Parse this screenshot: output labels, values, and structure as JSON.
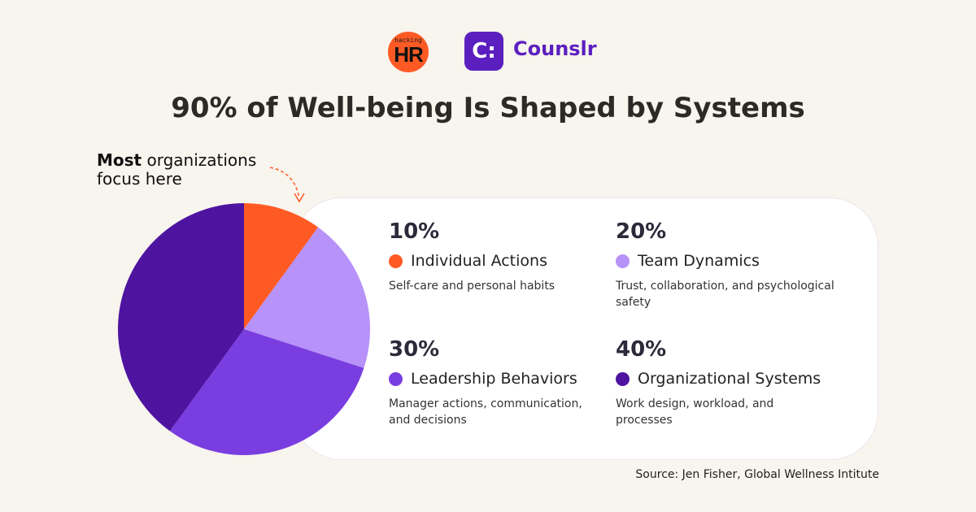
{
  "logos": {
    "hacking_hr": {
      "small": "hacking",
      "big": "HR"
    },
    "counslr": {
      "mark": "C:",
      "name": "Counslr"
    }
  },
  "title": "90% of Well-being Is Shaped by Systems",
  "annotation": {
    "bold": "Most",
    "rest": " organizations",
    "line2": "focus here"
  },
  "chart_data": {
    "type": "pie",
    "categories": [
      "Individual Actions",
      "Team Dynamics",
      "Leadership Behaviors",
      "Organizational Systems"
    ],
    "values": [
      10,
      20,
      30,
      40
    ],
    "colors": [
      "#ff5a24",
      "#b792f8",
      "#7a3de0",
      "#4e14a0"
    ],
    "start": "top",
    "direction": "clockwise",
    "legend": [
      {
        "pct": "10%",
        "label": "Individual Actions",
        "desc": "Self-care and personal habits"
      },
      {
        "pct": "20%",
        "label": "Team Dynamics",
        "desc": "Trust, collaboration, and psychological safety"
      },
      {
        "pct": "30%",
        "label": "Leadership Behaviors",
        "desc": "Manager actions, communication, and decisions"
      },
      {
        "pct": "40%",
        "label": "Organizational Systems",
        "desc": "Work design, workload, and processes"
      }
    ]
  },
  "source": "Source:  Jen Fisher,  Global Wellness Intitute"
}
